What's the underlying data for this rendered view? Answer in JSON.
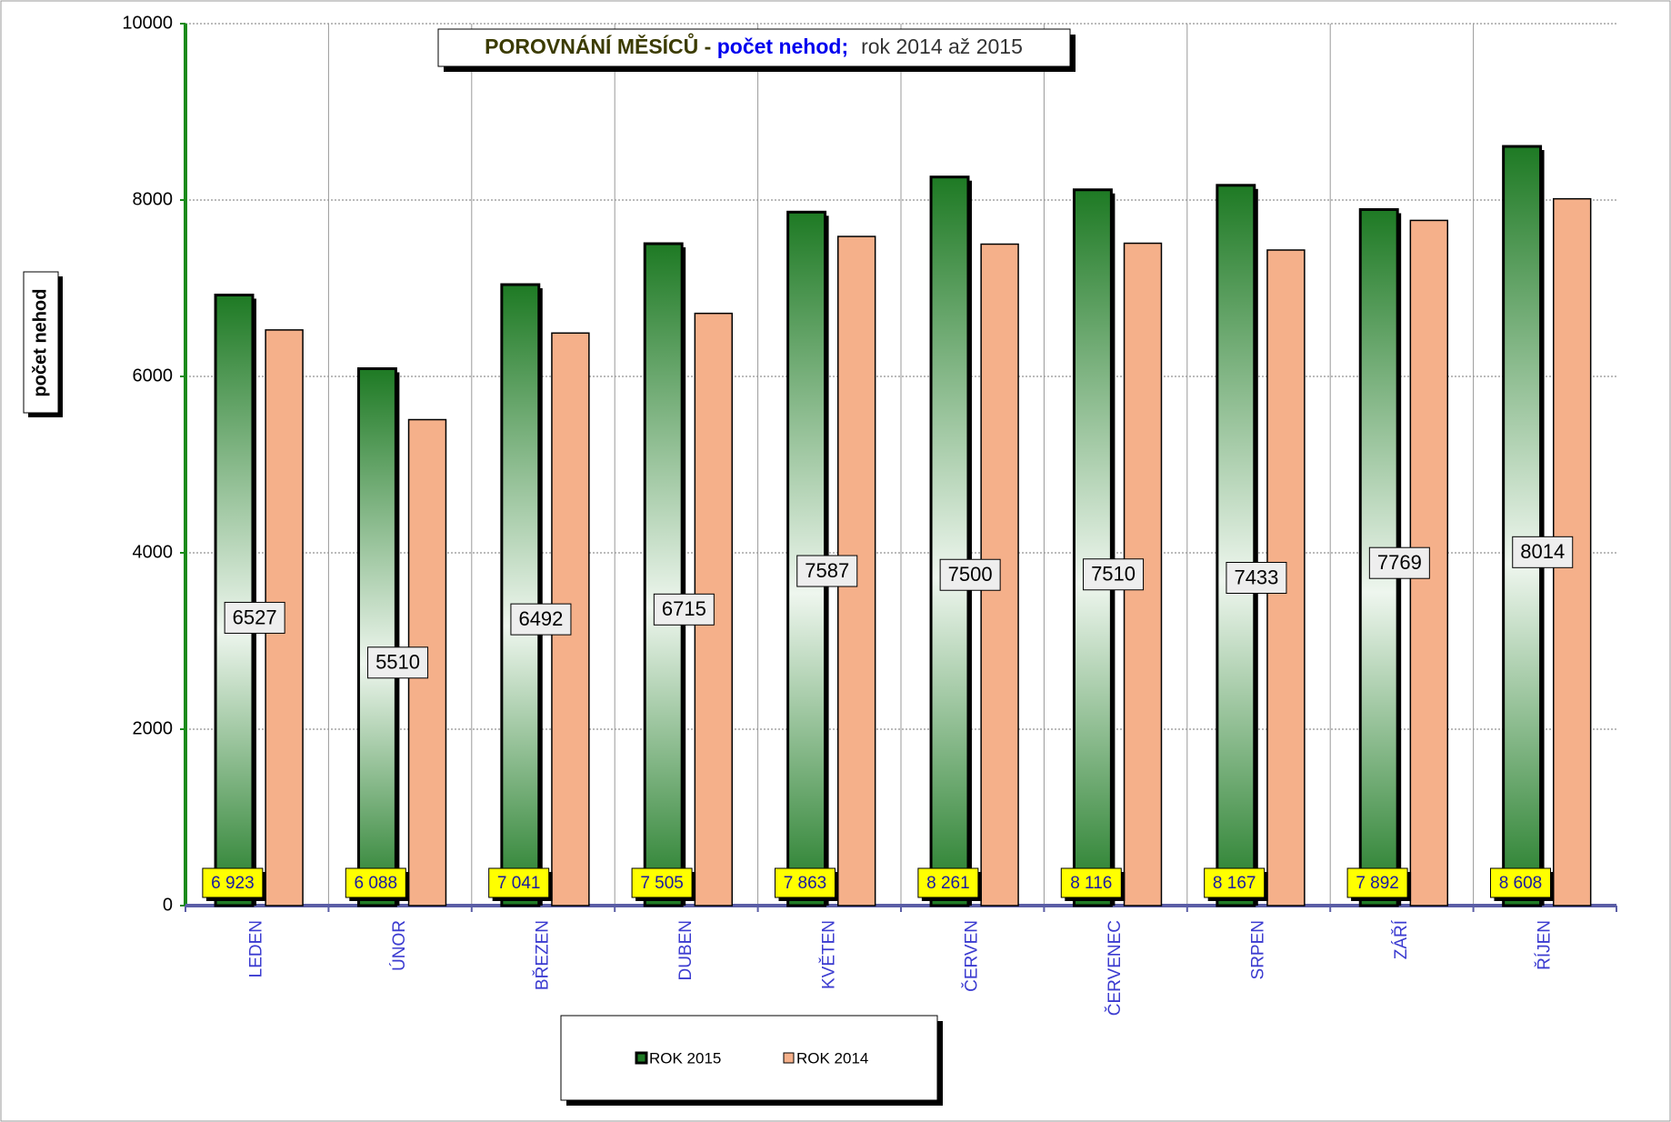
{
  "chart_data": {
    "type": "bar",
    "title": {
      "part1": "POROVNÁNÍ MĚSÍCŮ - ",
      "part2": "počet nehod;",
      "part3": "rok  2014 až  2015"
    },
    "y_label": "počet nehod",
    "categories": [
      "LEDEN",
      "ÚNOR",
      "BŘEZEN",
      "DUBEN",
      "KVĚTEN",
      "ČERVEN",
      "ČERVENEC",
      "SRPEN",
      "ZÁŘÍ",
      "ŘÍJEN"
    ],
    "series": [
      {
        "name": "ROK 2015",
        "color": "#1e7a24",
        "values": [
          6923,
          6088,
          7041,
          7505,
          7863,
          8261,
          8116,
          8167,
          7892,
          8608
        ],
        "value_labels": [
          "6 923",
          "6 088",
          "7 041",
          "7 505",
          "7 863",
          "8 261",
          "8 116",
          "8 167",
          "7 892",
          "8 608"
        ]
      },
      {
        "name": "ROK 2014",
        "color": "#f5b08a",
        "values": [
          6527,
          5510,
          6492,
          6715,
          7587,
          7500,
          7510,
          7433,
          7769,
          8014
        ]
      }
    ],
    "ylim": [
      0,
      10000
    ],
    "yticks": [
      0,
      2000,
      4000,
      6000,
      8000,
      10000
    ],
    "grid": true
  }
}
